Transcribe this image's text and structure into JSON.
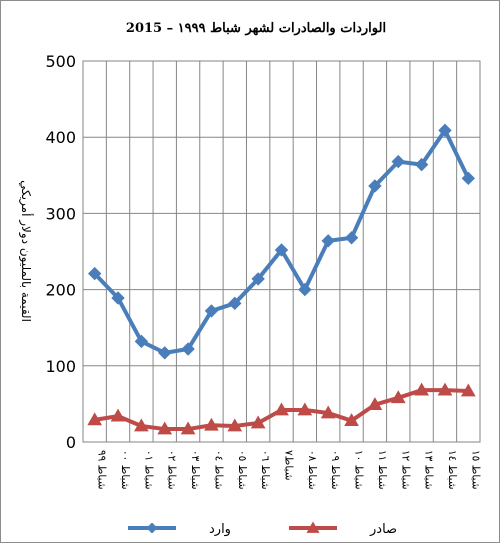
{
  "chart_data": {
    "type": "line",
    "title": "الواردات والصادرات لشهر شباط ١٩٩٩ – 2015",
    "ylabel": "القيمة بالمليون دولار أمريكي",
    "xlabel": "",
    "ylim": [
      0,
      500
    ],
    "yticks": [
      0,
      100,
      200,
      300,
      400,
      500
    ],
    "grid": true,
    "legend": "bottom",
    "categories": [
      "شباط ٩٩",
      "شباط ٠٠",
      "شباط ٠١",
      "شباط ٠٢",
      "شباط ٠٣",
      "شباط ٠٤",
      "شباط ٠٥",
      "شباط ٠٦",
      "شباط٧",
      "شباط ٠٨",
      "شباط ٠٩",
      "شباط ١٠",
      "شباط ١١",
      "شباط ١٢",
      "شباط ١٣",
      "شباط ١٤",
      "شباط ١٥"
    ],
    "series": [
      {
        "name": "وارد",
        "color": "#4a7ebb",
        "marker": "diamond",
        "values": [
          221,
          189,
          132,
          117,
          122,
          172,
          182,
          214,
          252,
          200,
          264,
          268,
          336,
          368,
          364,
          409,
          346
        ]
      },
      {
        "name": "صادر",
        "color": "#be4b48",
        "marker": "triangle",
        "values": [
          29,
          34,
          21,
          17,
          17,
          22,
          21,
          25,
          42,
          42,
          38,
          28,
          49,
          58,
          68,
          68,
          67
        ]
      }
    ]
  }
}
